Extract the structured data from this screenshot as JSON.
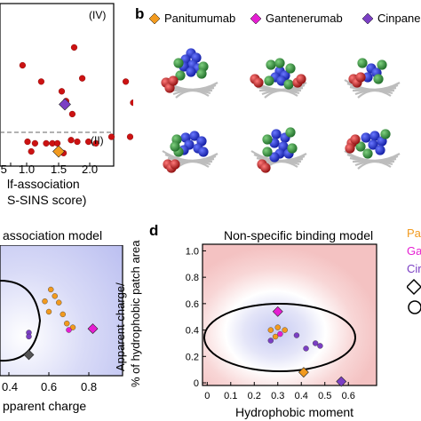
{
  "panel_letters": {
    "b": "b",
    "d": "d"
  },
  "legend_top": [
    {
      "name": "Panitumumab",
      "color": "#F29A1E"
    },
    {
      "name": "Gantenerumab",
      "color": "#E51ED2"
    },
    {
      "name": "Cinpane",
      "color": "#7B3FC4"
    }
  ],
  "legend_right": {
    "items": [
      "Pa",
      "Ga",
      "Cir"
    ],
    "colors": [
      "#F29A1E",
      "#E51ED2",
      "#7B3FC4"
    ]
  },
  "colors": {
    "red_point": "#CC1212",
    "gray_point": "#555555",
    "pink_bg": "#F6C6C6",
    "blue_bg": "#C9CDF2",
    "protein_blue": "#1F2ED6",
    "protein_green": "#2E9C3A",
    "protein_red": "#D11F1F"
  },
  "chart_data": [
    {
      "type": "scatter",
      "region_labels": [
        "(IV)",
        "(II)"
      ],
      "xlabel_line1": "lf-association",
      "xlabel_line2": "S-SINS score)",
      "x_ticks": [
        "1.0",
        "1.5",
        "2.0"
      ],
      "tick_prefix": ".5",
      "points_red": [
        {
          "x": 0.42,
          "y": 0.62
        },
        {
          "x": 0.72,
          "y": 0.52
        },
        {
          "x": 1.25,
          "y": 0.73
        },
        {
          "x": 1.38,
          "y": 0.54
        },
        {
          "x": 1.05,
          "y": 0.46
        },
        {
          "x": 1.12,
          "y": 0.4
        },
        {
          "x": 1.22,
          "y": 0.32
        },
        {
          "x": 2.08,
          "y": 0.52
        },
        {
          "x": 2.2,
          "y": 0.39
        },
        {
          "x": 1.85,
          "y": 0.18
        },
        {
          "x": 2.15,
          "y": 0.18
        },
        {
          "x": 1.2,
          "y": 0.16
        },
        {
          "x": 1.3,
          "y": 0.15
        },
        {
          "x": 1.48,
          "y": 0.15
        },
        {
          "x": 1.6,
          "y": 0.14
        },
        {
          "x": 0.5,
          "y": 0.15
        },
        {
          "x": 0.62,
          "y": 0.14
        },
        {
          "x": 0.8,
          "y": 0.14
        },
        {
          "x": 0.9,
          "y": 0.14
        },
        {
          "x": 0.98,
          "y": 0.14
        },
        {
          "x": 1.0,
          "y": 0.09
        },
        {
          "x": 1.08,
          "y": 0.08
        },
        {
          "x": 0.56,
          "y": 0.09
        }
      ],
      "points_special": [
        {
          "x": 1.1,
          "y": 0.38,
          "shape": "diamond",
          "color": "#7B3FC4"
        },
        {
          "x": 1.0,
          "y": 0.09,
          "shape": "diamond",
          "color": "#F29A1E"
        }
      ]
    },
    {
      "type": "scatter",
      "title": "association model",
      "xlabel": "pparent charge",
      "x_ticks": [
        "0.4",
        "0.6",
        "0.8"
      ],
      "points": [
        {
          "x": 0.61,
          "y": 0.66,
          "color": "#F29A1E"
        },
        {
          "x": 0.63,
          "y": 0.61,
          "color": "#F29A1E"
        },
        {
          "x": 0.58,
          "y": 0.57,
          "color": "#F29A1E"
        },
        {
          "x": 0.65,
          "y": 0.56,
          "color": "#F29A1E"
        },
        {
          "x": 0.6,
          "y": 0.49,
          "color": "#F29A1E"
        },
        {
          "x": 0.67,
          "y": 0.47,
          "color": "#F29A1E"
        },
        {
          "x": 0.69,
          "y": 0.4,
          "color": "#F29A1E"
        },
        {
          "x": 0.72,
          "y": 0.37,
          "color": "#F29A1E"
        },
        {
          "x": 0.7,
          "y": 0.35,
          "color": "#E51ED2"
        },
        {
          "x": 0.5,
          "y": 0.33,
          "color": "#7B3FC4"
        },
        {
          "x": 0.5,
          "y": 0.3,
          "color": "#7B3FC4"
        }
      ],
      "special": [
        {
          "x": 0.82,
          "y": 0.36,
          "shape": "diamond",
          "color": "#E51ED2"
        },
        {
          "x": 0.5,
          "y": 0.16,
          "shape": "diamond",
          "color": "#555555"
        }
      ]
    },
    {
      "type": "scatter",
      "title": "Non-specific binding model",
      "xlabel": "Hydrophobic moment",
      "ylabel_line1": "Apparent charge/",
      "ylabel_line2": "% of hydrophobic patch area",
      "x_ticks": [
        "0",
        "0.1",
        "0.2",
        "0.3",
        "0.4",
        "0.5",
        "0.6"
      ],
      "y_ticks": [
        "0",
        "0.2",
        "0.4",
        "0.6",
        "0.8",
        "1.0"
      ],
      "xlim": [
        -0.02,
        0.72
      ],
      "ylim": [
        -0.02,
        1.05
      ],
      "points": [
        {
          "x": 0.27,
          "y": 0.4,
          "color": "#F29A1E"
        },
        {
          "x": 0.3,
          "y": 0.42,
          "color": "#F29A1E"
        },
        {
          "x": 0.33,
          "y": 0.4,
          "color": "#F29A1E"
        },
        {
          "x": 0.29,
          "y": 0.35,
          "color": "#F29A1E"
        },
        {
          "x": 0.31,
          "y": 0.37,
          "color": "#E51ED2"
        },
        {
          "x": 0.27,
          "y": 0.32,
          "color": "#7B3FC4"
        },
        {
          "x": 0.38,
          "y": 0.36,
          "color": "#7B3FC4"
        },
        {
          "x": 0.46,
          "y": 0.3,
          "color": "#7B3FC4"
        },
        {
          "x": 0.48,
          "y": 0.28,
          "color": "#7B3FC4"
        },
        {
          "x": 0.42,
          "y": 0.26,
          "color": "#7B3FC4"
        }
      ],
      "special": [
        {
          "x": 0.3,
          "y": 0.54,
          "shape": "diamond",
          "color": "#E51ED2"
        },
        {
          "x": 0.41,
          "y": 0.08,
          "shape": "diamond",
          "color": "#F29A1E"
        },
        {
          "x": 0.57,
          "y": 0.01,
          "shape": "diamond",
          "color": "#7B3FC4"
        }
      ]
    }
  ]
}
